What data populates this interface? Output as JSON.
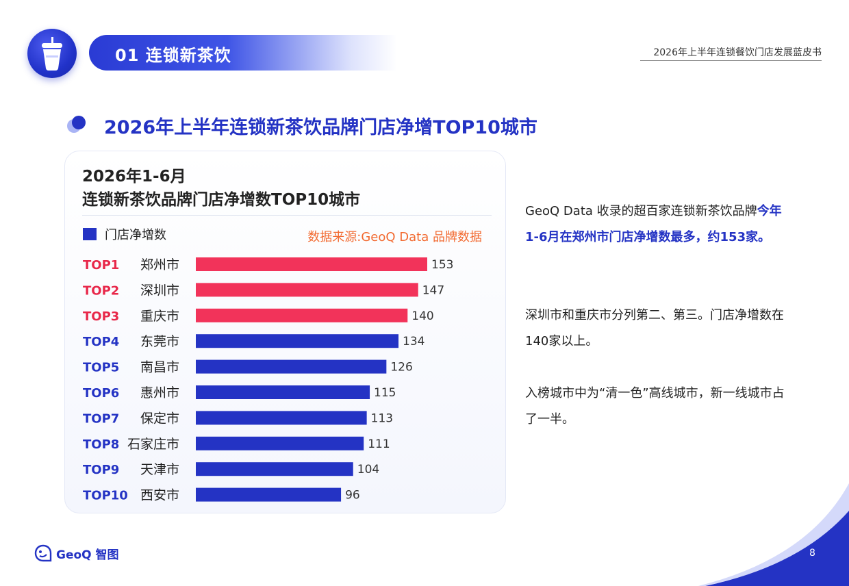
{
  "header": {
    "banner_title": "01 连锁新茶饮",
    "report_title": "2026年上半年连锁餐饮门店发展蓝皮书"
  },
  "section": {
    "title": "2026年上半年连锁新茶饮品牌门店净增TOP10城市"
  },
  "card": {
    "subtitle": "2026年1-6月",
    "title": "连锁新茶饮品牌门店净增数TOP10城市",
    "legend": "门店净增数",
    "source": "数据来源:GeoQ Data 品牌数据"
  },
  "chart_data": {
    "type": "bar",
    "orientation": "horizontal",
    "ranks": [
      "TOP1",
      "TOP2",
      "TOP3",
      "TOP4",
      "TOP5",
      "TOP6",
      "TOP7",
      "TOP8",
      "TOP9",
      "TOP10"
    ],
    "categories": [
      "郑州市",
      "深圳市",
      "重庆市",
      "东莞市",
      "南昌市",
      "惠州市",
      "保定市",
      "石家庄市",
      "天津市",
      "西安市"
    ],
    "series": [
      {
        "name": "门店净增数",
        "values": [
          153,
          147,
          140,
          134,
          126,
          115,
          113,
          111,
          104,
          96
        ]
      }
    ],
    "highlight_count": 3,
    "colors": {
      "highlight": "#f2335a",
      "normal": "#2433c4",
      "rank_highlight": "#e8284a",
      "rank_normal": "#2433c4"
    },
    "grid": false,
    "legend_position": "top-left"
  },
  "side": {
    "p1_a": "GeoQ Data 收录的超百家连锁新茶饮品牌",
    "p1_b": "今年1-6月在郑州市门店净增数最多，约153家。",
    "p2": "深圳市和重庆市分列第二、第三。门店净增数在140家以上。",
    "p3": "入榜城市中为“清一色”高线城市，新一线城市占了一半。"
  },
  "footer": {
    "logo_text": "GeoQ 智图",
    "page_number": "8"
  },
  "colors": {
    "brand_blue": "#2433c4",
    "accent_red": "#f2335a",
    "source_orange": "#f26a30"
  }
}
